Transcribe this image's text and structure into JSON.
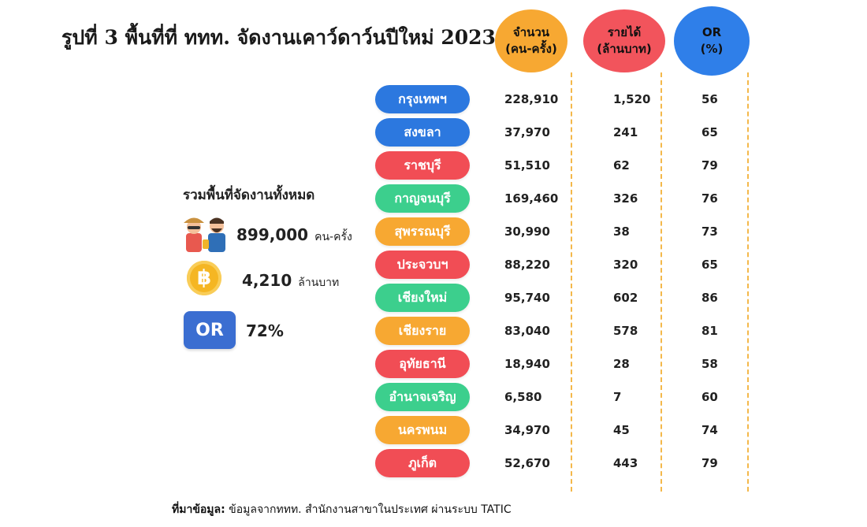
{
  "title": "รูปที่ 3 พื้นที่ที่ ททท. จัดงานเคาว์ดาว์นปีใหม่ 2023",
  "headers": {
    "count": [
      "จำนวน",
      "(คน-ครั้ง)"
    ],
    "revenue": [
      "รายได้",
      "(ล้านบาท)"
    ],
    "or": [
      "OR",
      "(%)"
    ]
  },
  "colors": {
    "blue": "#2c78df",
    "red": "#f14d55",
    "green": "#3ccf8d",
    "orange": "#f7a832",
    "dash": "#f4b84a"
  },
  "summary": {
    "title": "รวมพื้นที่จัดงานทั้งหมด",
    "visitors_value": "899,000",
    "visitors_unit": "คน-ครั้ง",
    "revenue_value": "4,210",
    "revenue_unit": "ล้านบาท",
    "coin_symbol": "฿",
    "or_badge": "OR",
    "or_value": "72%",
    "icons": [
      "tourists-icon",
      "baht-coin-icon",
      "or-badge-icon"
    ]
  },
  "source": {
    "label": "ที่มาข้อมูล:",
    "text": "ข้อมูลจากททท. สำนักงานสาขาในประเทศ ผ่านระบบ TATIC"
  },
  "chart_data": {
    "type": "table",
    "columns": [
      "จำนวน (คน-ครั้ง)",
      "รายได้ (ล้านบาท)",
      "OR (%)"
    ],
    "rows": [
      {
        "province": "กรุงเทพฯ",
        "color": "#2c78df",
        "count": "228,910",
        "revenue": "1,520",
        "or": "56"
      },
      {
        "province": "สงขลา",
        "color": "#2c78df",
        "count": "37,970",
        "revenue": "241",
        "or": "65"
      },
      {
        "province": "ราชบุรี",
        "color": "#f14d55",
        "count": "51,510",
        "revenue": "62",
        "or": "79"
      },
      {
        "province": "กาญจนบุรี",
        "color": "#3ccf8d",
        "count": "169,460",
        "revenue": "326",
        "or": "76"
      },
      {
        "province": "สุพรรณบุรี",
        "color": "#f7a832",
        "count": "30,990",
        "revenue": "38",
        "or": "73"
      },
      {
        "province": "ประจวบฯ",
        "color": "#f14d55",
        "count": "88,220",
        "revenue": "320",
        "or": "65"
      },
      {
        "province": "เชียงใหม่",
        "color": "#3ccf8d",
        "count": "95,740",
        "revenue": "602",
        "or": "86"
      },
      {
        "province": "เชียงราย",
        "color": "#f7a832",
        "count": "83,040",
        "revenue": "578",
        "or": "81"
      },
      {
        "province": "อุทัยธานี",
        "color": "#f14d55",
        "count": "18,940",
        "revenue": "28",
        "or": "58"
      },
      {
        "province": "อำนาจเจริญ",
        "color": "#3ccf8d",
        "count": "6,580",
        "revenue": "7",
        "or": "60"
      },
      {
        "province": "นครพนม",
        "color": "#f7a832",
        "count": "34,970",
        "revenue": "45",
        "or": "74"
      },
      {
        "province": "ภูเก็ต",
        "color": "#f14d55",
        "count": "52,670",
        "revenue": "443",
        "or": "79"
      }
    ]
  }
}
